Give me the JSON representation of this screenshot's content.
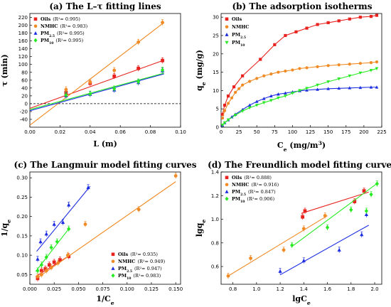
{
  "colors": {
    "red": "#e8231f",
    "orange": "#f08a24",
    "blue": "#1c2de0",
    "green": "#27ea22"
  },
  "chart_data": [
    {
      "id": "a",
      "type": "scatter",
      "title": "(a) The L–τ fitting lines",
      "xlabel": "L (m)",
      "ylabel": "τ (min)",
      "xlim": [
        0,
        0.1
      ],
      "ylim": [
        -60,
        230
      ],
      "xticks": [
        "0.00",
        "0.02",
        "0.04",
        "0.06",
        "0.08",
        "0.10"
      ],
      "yticks": [
        "-40",
        "-20",
        "0",
        "20",
        "40",
        "60",
        "80",
        "100",
        "120",
        "140",
        "160",
        "180",
        "200",
        "220"
      ],
      "grid": false,
      "legend_position": "top-left",
      "zero_line": true,
      "series": [
        {
          "name": "Oils",
          "r2": "(R²= 0.995)",
          "color": "red",
          "marker": "square",
          "x": [
            0.024,
            0.04,
            0.056,
            0.072,
            0.088
          ],
          "y": [
            28,
            52,
            70,
            90,
            110
          ],
          "fit": [
            [
              0,
              -12
            ],
            [
              0.089,
              111
            ]
          ]
        },
        {
          "name": "NMHC",
          "r2": "(R²= 0.983)",
          "color": "orange",
          "marker": "circle",
          "x": [
            0.024,
            0.04,
            0.056,
            0.072,
            0.088
          ],
          "y": [
            36,
            55,
            85,
            157,
            207
          ],
          "fit": [
            [
              0,
              -55
            ],
            [
              0.089,
              207
            ]
          ]
        },
        {
          "name": "PM2.5",
          "r2": "(R²= 0.995)",
          "color": "blue",
          "marker": "triangle",
          "x": [
            0.024,
            0.04,
            0.056,
            0.072,
            0.088
          ],
          "y": [
            20,
            24,
            35,
            54,
            84
          ],
          "fit": [
            [
              0,
              -18
            ],
            [
              0.089,
              76
            ]
          ]
        },
        {
          "name": "PM10",
          "r2": "(R²= 0.995)",
          "color": "green",
          "marker": "diamond",
          "x": [
            0.024,
            0.04,
            0.056,
            0.072,
            0.088
          ],
          "y": [
            22,
            25,
            38,
            56,
            86
          ],
          "fit": [
            [
              0,
              -15
            ],
            [
              0.089,
              78
            ]
          ]
        }
      ]
    },
    {
      "id": "b",
      "type": "line",
      "title": "(b) The adsorption isotherms",
      "xlabel": "Ce (mg/m3)",
      "ylabel": "qe (mg/g)",
      "xlim": [
        0,
        225
      ],
      "ylim": [
        0,
        31
      ],
      "xticks": [
        "0",
        "25",
        "50",
        "75",
        "100",
        "125",
        "150",
        "175",
        "200",
        "225"
      ],
      "yticks": [
        "0",
        "5",
        "10",
        "15",
        "20",
        "25",
        "30"
      ],
      "grid": false,
      "legend_position": "top-left",
      "series": [
        {
          "name": "Oils",
          "color": "red",
          "marker": "square",
          "x": [
            2,
            5,
            10,
            18,
            30,
            55,
            75,
            90,
            105,
            120,
            135,
            150,
            165,
            180,
            195,
            210,
            218
          ],
          "y": [
            3.5,
            6,
            8.5,
            11,
            14,
            18.5,
            22.5,
            25,
            26,
            27,
            28,
            28.5,
            29,
            29.5,
            30,
            30.2,
            30.5
          ]
        },
        {
          "name": "NMHC",
          "color": "orange",
          "marker": "circle",
          "x": [
            2,
            5,
            10,
            15,
            20,
            25,
            30,
            40,
            50,
            60,
            70,
            80,
            90,
            100,
            110,
            120,
            135,
            150,
            165,
            180,
            195,
            210,
            218
          ],
          "y": [
            2.5,
            4.5,
            6.5,
            8,
            9.5,
            10.5,
            11.5,
            12.5,
            13.3,
            14,
            14.5,
            15,
            15.3,
            15.6,
            16,
            16.2,
            16.5,
            16.8,
            17,
            17.2,
            17.4,
            17.6,
            17.8
          ]
        },
        {
          "name": "PM2.5",
          "color": "blue",
          "marker": "triangle",
          "x": [
            2,
            5,
            10,
            15,
            20,
            30,
            40,
            50,
            60,
            70,
            80,
            90,
            100,
            110,
            120,
            135,
            150,
            165,
            180,
            195,
            210,
            218
          ],
          "y": [
            0.5,
            1.2,
            2,
            2.8,
            3.5,
            4.8,
            6,
            7,
            7.8,
            8.5,
            9,
            9.3,
            9.6,
            9.9,
            10.1,
            10.3,
            10.5,
            10.6,
            10.7,
            10.8,
            10.9,
            10.9
          ]
        },
        {
          "name": "PM10",
          "color": "green",
          "marker": "inv-triangle",
          "x": [
            2,
            5,
            10,
            20,
            30,
            40,
            50,
            60,
            70,
            80,
            90,
            100,
            110,
            120,
            135,
            150,
            165,
            180,
            195,
            210,
            218
          ],
          "y": [
            0.6,
            1.2,
            2,
            3.3,
            4.4,
            5.3,
            6,
            6.7,
            7.3,
            8,
            8.5,
            9.3,
            10,
            10.6,
            11.5,
            12.4,
            13.2,
            14,
            14.8,
            15.5,
            16
          ]
        }
      ]
    },
    {
      "id": "c",
      "type": "scatter",
      "title": "(c) The Langmuir model fitting curves",
      "xlabel": "1/Ce",
      "ylabel": "1/qe",
      "xlim": [
        0,
        0.155
      ],
      "ylim": [
        0.025,
        0.315
      ],
      "xticks": [
        "0.000",
        "0.025",
        "0.050",
        "0.075",
        "0.100",
        "0.125",
        "0.150"
      ],
      "yticks": [
        "0.05",
        "0.10",
        "0.15",
        "0.20",
        "0.25",
        "0.30"
      ],
      "grid": false,
      "legend_position": "bottom-right",
      "series": [
        {
          "name": "Oils",
          "r2": "(R²= 0.935)",
          "color": "red",
          "marker": "square",
          "x": [
            0.008,
            0.012,
            0.016,
            0.02,
            0.025,
            0.031,
            0.04
          ],
          "y": [
            0.04,
            0.06,
            0.065,
            0.075,
            0.082,
            0.088,
            0.097
          ],
          "fit": [
            [
              0.006,
              0.045
            ],
            [
              0.04,
              0.098
            ]
          ]
        },
        {
          "name": "NMHC",
          "r2": "(R²= 0.949)",
          "color": "orange",
          "marker": "circle",
          "x": [
            0.008,
            0.012,
            0.017,
            0.022,
            0.029,
            0.039,
            0.057,
            0.112,
            0.15
          ],
          "y": [
            0.045,
            0.05,
            0.06,
            0.068,
            0.08,
            0.1,
            0.18,
            0.218,
            0.305
          ],
          "fit": [
            [
              0.008,
              0.042
            ],
            [
              0.15,
              0.29
            ]
          ]
        },
        {
          "name": "PM2.5",
          "r2": "(R²= 0.947)",
          "color": "blue",
          "marker": "triangle",
          "x": [
            0.008,
            0.011,
            0.017,
            0.025,
            0.034,
            0.04,
            0.06
          ],
          "y": [
            0.09,
            0.135,
            0.155,
            0.18,
            0.185,
            0.23,
            0.275
          ],
          "fit": [
            [
              0.007,
              0.11
            ],
            [
              0.062,
              0.278
            ]
          ]
        },
        {
          "name": "PM10",
          "r2": "(R²= 0.983)",
          "color": "green",
          "marker": "diamond",
          "x": [
            0.008,
            0.012,
            0.017,
            0.022,
            0.028,
            0.04
          ],
          "y": [
            0.06,
            0.075,
            0.095,
            0.12,
            0.135,
            0.168
          ],
          "fit": [
            [
              0.006,
              0.058
            ],
            [
              0.04,
              0.168
            ]
          ]
        }
      ]
    },
    {
      "id": "d",
      "type": "scatter",
      "title": "(d) The Freundlich model fitting curves",
      "xlabel": "lgCe",
      "ylabel": "lgqe",
      "xlim": [
        0.7,
        2.06
      ],
      "ylim": [
        0.45,
        1.4
      ],
      "xticks": [
        "0.8",
        "1.0",
        "1.2",
        "1.4",
        "1.6",
        "1.8",
        "2.0"
      ],
      "yticks": [
        "0.6",
        "0.8",
        "1.0",
        "1.2",
        "1.4"
      ],
      "grid": false,
      "legend_position": "top-left",
      "series": [
        {
          "name": "Oils",
          "r2": "(R²= 0.888)",
          "color": "red",
          "marker": "square",
          "x": [
            1.39,
            1.41,
            1.83,
            1.91
          ],
          "y": [
            1.02,
            1.07,
            1.15,
            1.24
          ],
          "fit": [
            [
              1.38,
              1.05
            ],
            [
              1.95,
              1.23
            ]
          ]
        },
        {
          "name": "NMHC",
          "r2": "(R²= 0.916)",
          "color": "orange",
          "marker": "circle",
          "x": [
            0.76,
            0.95,
            1.23,
            1.4,
            1.58
          ],
          "y": [
            0.52,
            0.67,
            0.74,
            0.92,
            1.03
          ],
          "fit": [
            [
              0.76,
              0.52
            ],
            [
              1.6,
              1.03
            ]
          ]
        },
        {
          "name": "PM2.5",
          "r2": "(R²= 0.847)",
          "color": "blue",
          "marker": "triangle",
          "x": [
            1.2,
            1.4,
            1.7,
            1.89,
            1.93
          ],
          "y": [
            0.56,
            0.65,
            0.74,
            0.87,
            1.04
          ],
          "fit": [
            [
              1.2,
              0.53
            ],
            [
              1.95,
              0.95
            ]
          ]
        },
        {
          "name": "PM10",
          "r2": "(R²= 0.906)",
          "color": "green",
          "marker": "diamond",
          "x": [
            1.3,
            1.6,
            1.8,
            1.93,
            1.97,
            2.02
          ],
          "y": [
            0.78,
            0.93,
            1.08,
            1.07,
            1.21,
            1.3
          ],
          "fit": [
            [
              1.3,
              0.77
            ],
            [
              2.03,
              1.31
            ]
          ]
        }
      ]
    }
  ]
}
